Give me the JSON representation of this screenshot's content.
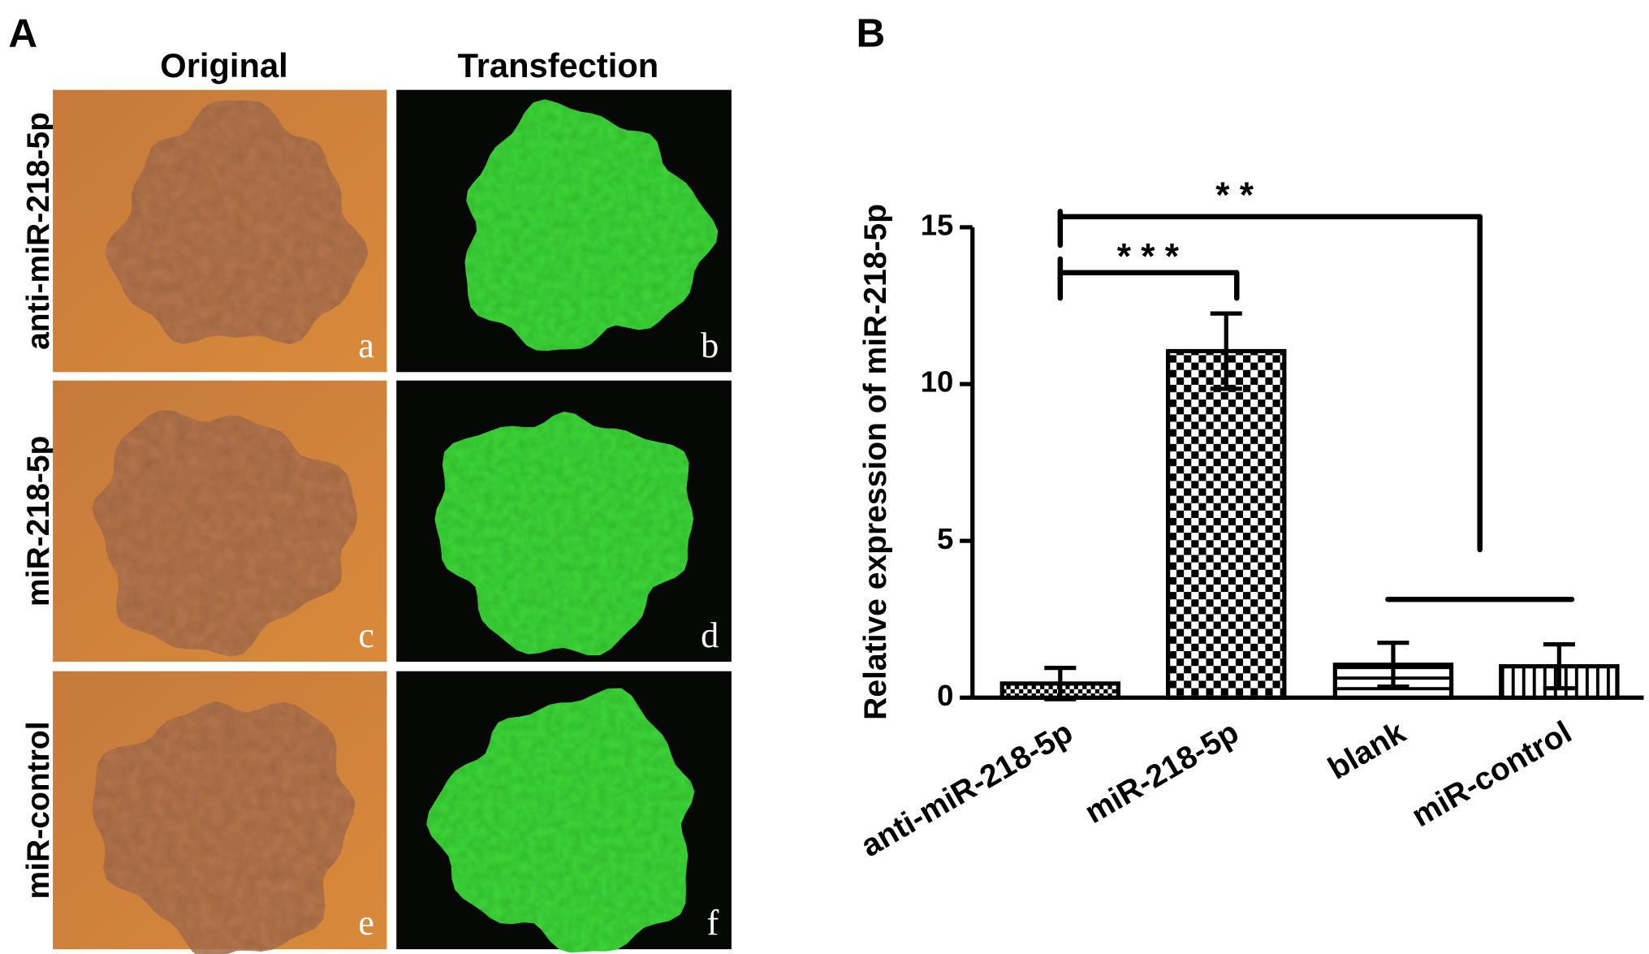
{
  "panel_a": {
    "label": "A",
    "columns": [
      "Original",
      "Transfection"
    ],
    "rows": [
      "anti-miR-218-5p",
      "miR-218-5p",
      "miR-control"
    ],
    "letters": [
      "a",
      "b",
      "c",
      "d",
      "e",
      "f"
    ]
  },
  "chart_data": {
    "type": "bar",
    "panel_label": "B",
    "y_label": "Relative expression of miR-218-5p",
    "categories": [
      "anti-miR-218-5p",
      "miR-218-5p",
      "blank",
      "miR-control"
    ],
    "values": [
      0.45,
      11.05,
      1.05,
      1.0
    ],
    "errors": [
      0.5,
      1.2,
      0.7,
      0.7
    ],
    "patterns": [
      "fine-checker",
      "checker",
      "horizontal",
      "vertical"
    ],
    "color": "#000000",
    "ylim": [
      0,
      15
    ],
    "yticks": [
      0,
      5,
      10,
      15
    ],
    "annotations": [
      "* *",
      "* * *"
    ]
  }
}
